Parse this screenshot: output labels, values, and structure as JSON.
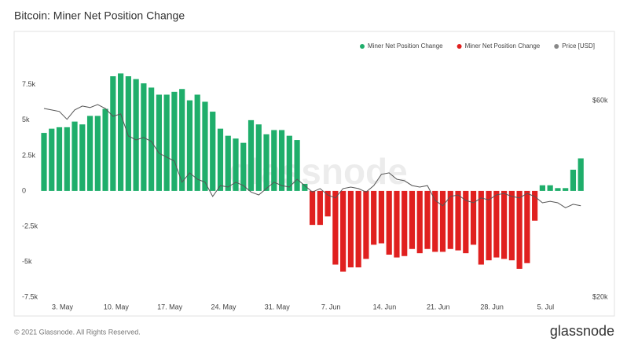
{
  "chart_data": {
    "type": "bar",
    "title": "Bitcoin: Miner Net Position Change",
    "watermark": "glassnode",
    "footer": "© 2021 Glassnode. All Rights Reserved.",
    "logo": "glassnode",
    "categories": [
      null,
      null,
      "3. May",
      null,
      null,
      null,
      null,
      null,
      null,
      "10. May",
      null,
      null,
      null,
      null,
      null,
      null,
      "17. May",
      null,
      null,
      null,
      null,
      null,
      null,
      "24. May",
      null,
      null,
      null,
      null,
      null,
      null,
      "31. May",
      null,
      null,
      null,
      null,
      null,
      null,
      "7. Jun",
      null,
      null,
      null,
      null,
      null,
      null,
      "14. Jun",
      null,
      null,
      null,
      null,
      null,
      null,
      "21. Jun",
      null,
      null,
      null,
      null,
      null,
      null,
      "28. Jun",
      null,
      null,
      null,
      null,
      null,
      null,
      "5. Jul",
      null,
      null,
      null,
      null,
      null
    ],
    "series": [
      {
        "name": "Miner Net Position Change",
        "color": "#1fae6b",
        "values": [
          4100,
          4400,
          4500,
          4500,
          4900,
          4700,
          5300,
          5300,
          5800,
          8100,
          8300,
          8100,
          7900,
          7600,
          7300,
          6800,
          6800,
          7000,
          7200,
          6400,
          6800,
          6300,
          5600,
          4400,
          3900,
          3700,
          3400,
          5000,
          4700,
          4000,
          4300,
          4300,
          3900,
          3600,
          500,
          null,
          null,
          null,
          null,
          null,
          null,
          null,
          null,
          null,
          null,
          null,
          null,
          null,
          null,
          null,
          null,
          null,
          null,
          null,
          null,
          null,
          null,
          null,
          null,
          null,
          null,
          null,
          null,
          null,
          null,
          400,
          400,
          200,
          200,
          1500,
          2300
        ]
      },
      {
        "name": "Miner Net Position Change",
        "color": "#e0201f",
        "values": [
          null,
          null,
          null,
          null,
          null,
          null,
          null,
          null,
          null,
          null,
          null,
          null,
          null,
          null,
          null,
          null,
          null,
          null,
          null,
          null,
          null,
          null,
          null,
          null,
          null,
          null,
          null,
          null,
          null,
          null,
          null,
          null,
          null,
          null,
          null,
          -2400,
          -2400,
          -1800,
          -5200,
          -5700,
          -5400,
          -5400,
          -4800,
          -3800,
          -3700,
          -4500,
          -4700,
          -4600,
          -4100,
          -4400,
          -4100,
          -4300,
          -4300,
          -4100,
          -4200,
          -4400,
          -3800,
          -5200,
          -4900,
          -4700,
          -4800,
          -4900,
          -5500,
          -5100,
          -2100,
          null,
          null,
          null,
          null,
          null,
          null
        ]
      },
      {
        "name": "Price [USD]",
        "color": "#555555",
        "axis": "y2",
        "values": [
          58400,
          58100,
          57800,
          56200,
          58100,
          58900,
          58600,
          59200,
          58400,
          56800,
          57300,
          52800,
          52000,
          52500,
          51700,
          49300,
          48500,
          47700,
          43400,
          45300,
          44000,
          43400,
          40500,
          42700,
          42400,
          43400,
          42700,
          41400,
          40800,
          42100,
          43400,
          42700,
          42400,
          44000,
          42700,
          41400,
          42100,
          40800,
          40200,
          42100,
          42400,
          42100,
          41400,
          42700,
          45000,
          45300,
          44000,
          43700,
          42700,
          42400,
          42700,
          39700,
          38600,
          40500,
          40800,
          39700,
          39200,
          40200,
          39800,
          40800,
          41100,
          40500,
          40200,
          41100,
          40500,
          39200,
          39500,
          39200,
          38200,
          38900,
          38600
        ]
      }
    ],
    "ylim": [
      -7500,
      9600
    ],
    "yticks": [
      {
        "value": 7500,
        "label": "7.5k"
      },
      {
        "value": 5000,
        "label": "5k"
      },
      {
        "value": 2500,
        "label": "2.5k"
      },
      0,
      {
        "value": -2500,
        "label": "-2.5k"
      },
      {
        "value": -5000,
        "label": "-5k"
      },
      {
        "value": -7500,
        "label": "-7.5k"
      }
    ],
    "y2lim": [
      20000,
      69280
    ],
    "y2ticks": [
      {
        "value": 60000,
        "label": "$60k"
      },
      {
        "value": 20000,
        "label": "$20k"
      }
    ],
    "grid": false,
    "legend": "top-right"
  }
}
